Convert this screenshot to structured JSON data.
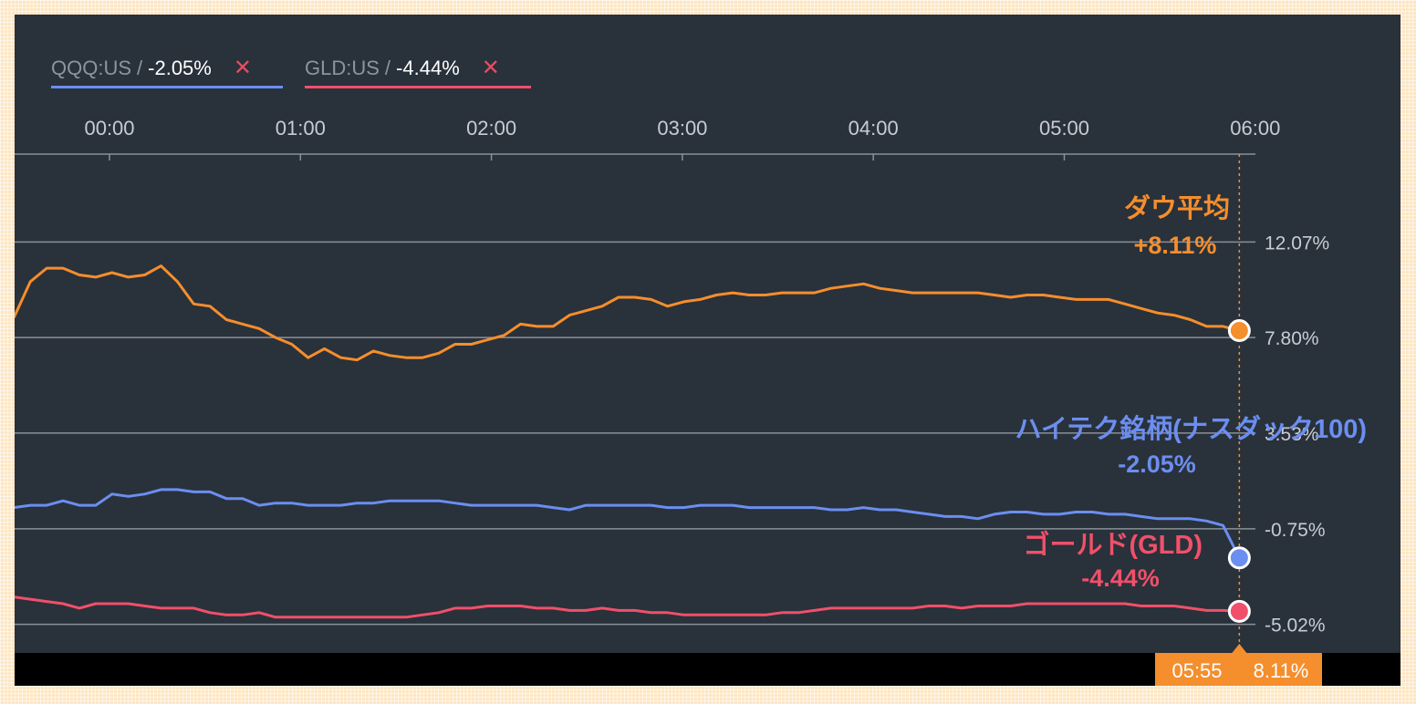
{
  "legend": [
    {
      "symbol": "QQQ:US",
      "separator": "/",
      "value": "-2.05%",
      "close": "✕",
      "color": "#6b8ef0"
    },
    {
      "symbol": "GLD:US",
      "separator": "/",
      "value": "-4.44%",
      "close": "✕",
      "color": "#f0506a"
    }
  ],
  "colors": {
    "background": "#29313b",
    "grid": "#8a9099",
    "dow": "#f58e2c",
    "nasdaq": "#6b8ef0",
    "gold": "#f0506a",
    "tooltip": "#f58e2c"
  },
  "tooltip": {
    "time": "05:55",
    "value": "8.11%"
  },
  "chart_data": {
    "type": "line",
    "x_ticks": [
      "00:00",
      "01:00",
      "02:00",
      "03:00",
      "04:00",
      "05:00",
      "06:00"
    ],
    "y_ticks": [
      "12.07%",
      "7.80%",
      "3.53%",
      "-0.75%",
      "-5.02%"
    ],
    "y_tick_values": [
      12.07,
      7.8,
      3.53,
      -0.75,
      -5.02
    ],
    "ylim": [
      -6.3,
      16.0
    ],
    "xlim_minutes": [
      -30,
      380
    ],
    "x_interval_minutes": 3.7,
    "x_start_minutes": -30,
    "current_time_minutes": 355,
    "grid": "horizontal",
    "series": [
      {
        "name": "ダウ平均",
        "label_value": "+8.11%",
        "color": "#f58e2c",
        "values": [
          8.7,
          10.3,
          10.9,
          10.9,
          10.6,
          10.5,
          10.7,
          10.5,
          10.6,
          11.0,
          10.3,
          9.3,
          9.2,
          8.6,
          8.4,
          8.2,
          7.8,
          7.5,
          6.9,
          7.3,
          6.9,
          6.8,
          7.2,
          7.0,
          6.9,
          6.9,
          7.1,
          7.5,
          7.5,
          7.7,
          7.9,
          8.4,
          8.3,
          8.3,
          8.8,
          9.0,
          9.2,
          9.6,
          9.6,
          9.5,
          9.2,
          9.4,
          9.5,
          9.7,
          9.8,
          9.7,
          9.7,
          9.8,
          9.8,
          9.8,
          10.0,
          10.1,
          10.2,
          10.0,
          9.9,
          9.8,
          9.8,
          9.8,
          9.8,
          9.8,
          9.7,
          9.6,
          9.7,
          9.7,
          9.6,
          9.5,
          9.5,
          9.5,
          9.3,
          9.1,
          8.9,
          8.8,
          8.6,
          8.3,
          8.3,
          8.11
        ]
      },
      {
        "name": "ハイテク銘柄(ナスダック100)",
        "label_value": "-2.05%",
        "color": "#6b8ef0",
        "values": [
          0.2,
          0.3,
          0.3,
          0.5,
          0.3,
          0.3,
          0.8,
          0.7,
          0.8,
          1.0,
          1.0,
          0.9,
          0.9,
          0.6,
          0.6,
          0.3,
          0.4,
          0.4,
          0.3,
          0.3,
          0.3,
          0.4,
          0.4,
          0.5,
          0.5,
          0.5,
          0.5,
          0.4,
          0.3,
          0.3,
          0.3,
          0.3,
          0.3,
          0.2,
          0.1,
          0.3,
          0.3,
          0.3,
          0.3,
          0.3,
          0.2,
          0.2,
          0.3,
          0.3,
          0.3,
          0.2,
          0.2,
          0.2,
          0.2,
          0.2,
          0.1,
          0.1,
          0.2,
          0.1,
          0.1,
          0.0,
          -0.1,
          -0.2,
          -0.2,
          -0.3,
          -0.1,
          0.0,
          0.0,
          -0.1,
          -0.1,
          0.0,
          0.0,
          -0.1,
          -0.1,
          -0.2,
          -0.3,
          -0.3,
          -0.3,
          -0.4,
          -0.6,
          -2.05
        ]
      },
      {
        "name": "ゴールド(GLD)",
        "label_value": "-4.44%",
        "color": "#f0506a",
        "values": [
          -3.8,
          -3.9,
          -4.0,
          -4.1,
          -4.3,
          -4.1,
          -4.1,
          -4.1,
          -4.2,
          -4.3,
          -4.3,
          -4.3,
          -4.5,
          -4.6,
          -4.6,
          -4.5,
          -4.7,
          -4.7,
          -4.7,
          -4.7,
          -4.7,
          -4.7,
          -4.7,
          -4.7,
          -4.7,
          -4.6,
          -4.5,
          -4.3,
          -4.3,
          -4.2,
          -4.2,
          -4.2,
          -4.3,
          -4.3,
          -4.4,
          -4.4,
          -4.3,
          -4.4,
          -4.4,
          -4.5,
          -4.5,
          -4.6,
          -4.6,
          -4.6,
          -4.6,
          -4.6,
          -4.6,
          -4.5,
          -4.5,
          -4.4,
          -4.3,
          -4.3,
          -4.3,
          -4.3,
          -4.3,
          -4.3,
          -4.2,
          -4.2,
          -4.3,
          -4.2,
          -4.2,
          -4.2,
          -4.1,
          -4.1,
          -4.1,
          -4.1,
          -4.1,
          -4.1,
          -4.1,
          -4.2,
          -4.2,
          -4.2,
          -4.3,
          -4.4,
          -4.4,
          -4.44
        ]
      }
    ]
  }
}
